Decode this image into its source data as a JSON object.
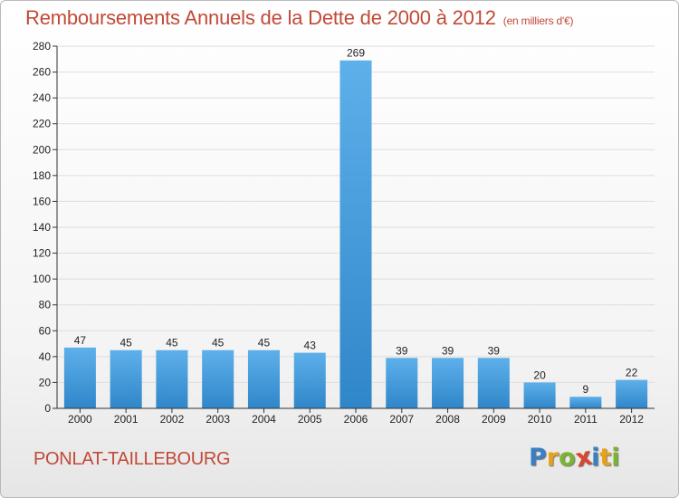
{
  "header": {
    "title": "Remboursements Annuels de la Dette de 2000 à 2012",
    "unit": "(en milliers d'€)"
  },
  "footer": {
    "town": "PONLAT-TAILLEBOURG",
    "logo_letters": [
      "P",
      "r",
      "o",
      "x",
      "i",
      "t",
      "i"
    ],
    "logo_colors": [
      "#3a7fc4",
      "#e8a21a",
      "#7ab52f",
      "#d9452f",
      "#3a7fc4",
      "#e8a21a",
      "#7ab52f"
    ]
  },
  "colors": {
    "title": "#c14a37",
    "bar_light": "#5eb0ea",
    "bar_dark": "#2f86c9",
    "grid": "#dddddd"
  },
  "chart_data": {
    "type": "bar",
    "title": "Remboursements Annuels de la Dette de 2000 à 2012",
    "subtitle": "(en milliers d'€)",
    "xlabel": "",
    "ylabel": "",
    "categories": [
      "2000",
      "2001",
      "2002",
      "2003",
      "2004",
      "2005",
      "2006",
      "2007",
      "2008",
      "2009",
      "2010",
      "2011",
      "2012"
    ],
    "values": [
      47,
      45,
      45,
      45,
      45,
      43,
      269,
      39,
      39,
      39,
      20,
      9,
      22
    ],
    "ylim": [
      0,
      280
    ],
    "yticks": [
      0,
      20,
      40,
      60,
      80,
      100,
      120,
      140,
      160,
      180,
      200,
      220,
      240,
      260,
      280
    ],
    "grid": true
  }
}
